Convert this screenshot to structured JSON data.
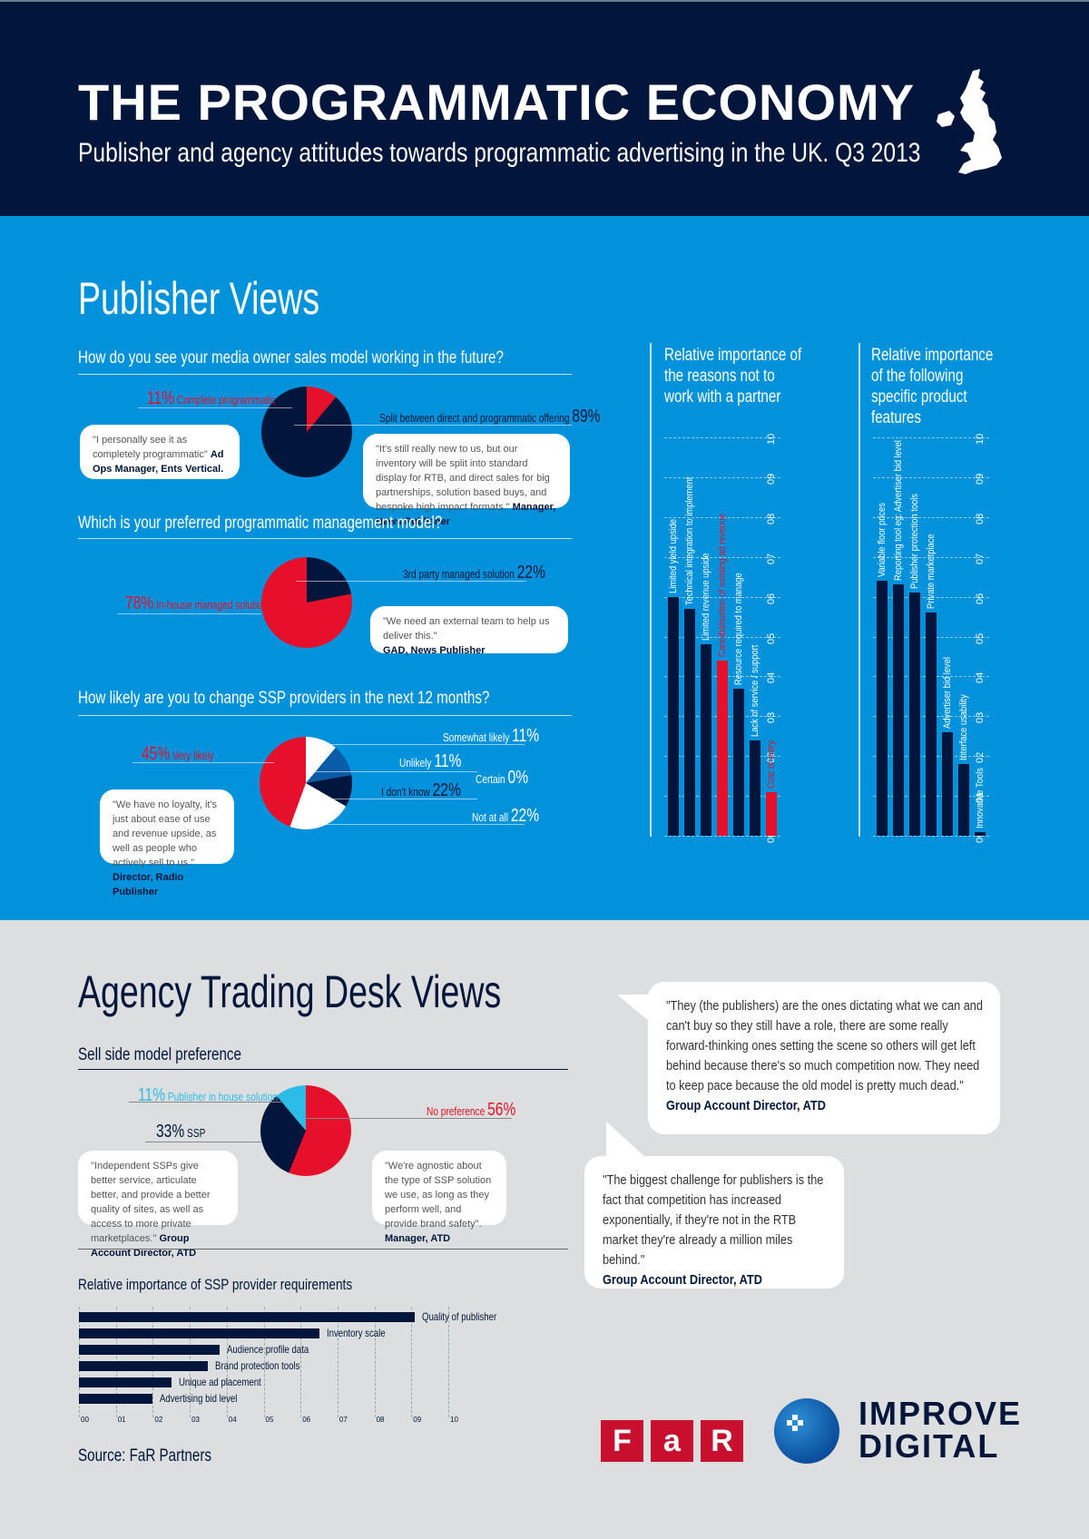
{
  "header": {
    "title": "THE PROGRAMMATIC ECONOMY",
    "subtitle": "Publisher and agency attitudes towards programmatic advertising in the UK. Q3 2013",
    "icon": "uk-map-icon"
  },
  "publisher": {
    "section_title": "Publisher Views",
    "q1": {
      "question": "How do you see your media owner sales model working in the future?",
      "slices": [
        {
          "pct": "11%",
          "label": "Complete programmatic"
        },
        {
          "pct": "89%",
          "label": "Split between direct and programmatic offering"
        }
      ],
      "quote_left": "\"I personally see it as completely programmatic\"",
      "quote_left_who": "Ad Ops Manager, Ents Vertical.",
      "quote_right": "\"It's still really new to us, but our inventory will be split into standard display for RTB, and direct sales for big partnerships, solution based buys, and bespoke high impact formats.\"",
      "quote_right_who": "Manager, News Publisher"
    },
    "q2": {
      "question": "Which is your preferred programmatic management model?",
      "slices": [
        {
          "pct": "22%",
          "label": "3rd party managed solution"
        },
        {
          "pct": "78%",
          "label": "In-house managed solution"
        }
      ],
      "quote": "\"We need an external team to help us deliver this.\"",
      "quote_who": "GAD, News Publisher"
    },
    "q3": {
      "question": "How likely are you to change SSP providers in the next 12 months?",
      "slices": [
        {
          "pct": "45%",
          "label": "Very likely"
        },
        {
          "pct": "11%",
          "label": "Somewhat likely"
        },
        {
          "pct": "11%",
          "label": "Unlikely"
        },
        {
          "pct": "0%",
          "label": "Certain"
        },
        {
          "pct": "22%",
          "label": "I don't know"
        },
        {
          "pct": "22%",
          "label": "Not at all"
        }
      ],
      "quote": "\"We have no loyalty, it's just about ease of use and revenue upside, as well as people who actively sell to us.\"",
      "quote_who": "Director, Radio Publisher"
    },
    "reasons_chart": {
      "title": "Relative importance of the reasons not to work with a partner"
    },
    "features_chart": {
      "title": "Relative importance of the following specific product features"
    },
    "ticks": [
      "00",
      "01",
      "02",
      "03",
      "04",
      "05",
      "06",
      "07",
      "08",
      "09",
      "10"
    ]
  },
  "agency": {
    "section_title": "Agency Trading Desk Views",
    "sell_side": {
      "title": "Sell side model preference",
      "slices": [
        {
          "pct": "11%",
          "label": "Publisher in house solution"
        },
        {
          "pct": "33%",
          "label": "SSP"
        },
        {
          "pct": "56%",
          "label": "No preference"
        }
      ],
      "quote_left": "\"Independent SSPs give better service, articulate better, and provide a better quality of sites, as well as access to more private marketplaces.\"",
      "quote_left_who": "Group Account Director, ATD",
      "quote_right": "\"We're agnostic about the type of SSP solution we use, as long as they perform well, and provide brand safety\".",
      "quote_right_who": "Manager, ATD"
    },
    "ssp_chart": {
      "title": "Relative importance of SSP provider requirements"
    },
    "quote1": "\"They (the publishers) are the ones dictating what we can and can't buy so they still have a role, there are some really forward-thinking ones setting the scene so others will get left behind because there's so much competition now. They need to keep pace because the old model is pretty much dead.\"",
    "quote1_who": "Group Account Director,  ATD",
    "quote2": "\"The biggest challenge for publishers is the fact that competition has increased exponentially, if they're not in the RTB market they're already a million miles behind.\"",
    "quote2_who": "Group Account Director, ATD",
    "source": "Source: FaR Partners"
  },
  "logos": {
    "far": [
      "F",
      "a",
      "R"
    ],
    "improve_digital_line1": "IMPROVE",
    "improve_digital_line2": "DIGITAL"
  },
  "colors": {
    "navy": "#01163a",
    "blue": "#0192db",
    "red": "#e6102a",
    "light_blue": "#2bbde8",
    "grey": "#dcdedf"
  },
  "chart_data": [
    {
      "type": "pie",
      "title": "How do you see your media owner sales model working in the future?",
      "categories": [
        "Complete programmatic",
        "Split between direct and programmatic offering"
      ],
      "values": [
        11,
        89
      ]
    },
    {
      "type": "pie",
      "title": "Which is your preferred programmatic management model?",
      "categories": [
        "3rd party managed solution",
        "In-house managed solution"
      ],
      "values": [
        22,
        78
      ]
    },
    {
      "type": "pie",
      "title": "How likely are you to change SSP providers in the next 12 months?",
      "categories": [
        "Very likely",
        "Somewhat likely",
        "Unlikely",
        "Certain",
        "I don't know",
        "Not at all"
      ],
      "values": [
        45,
        11,
        11,
        0,
        22,
        22
      ]
    },
    {
      "type": "bar",
      "title": "Relative importance of the reasons not to work with a partner",
      "categories": [
        "Limited yield upside",
        "Technical integration to implement",
        "Limited revenue upside",
        "Cannibalisation of existing ad revenue",
        "Resource required to manage",
        "Lack of service / support",
        "Cost of entry"
      ],
      "values": [
        6.0,
        5.7,
        4.8,
        4.4,
        3.7,
        2.4,
        1.1
      ],
      "highlighted": [
        "Cannibalisation of existing ad revenue",
        "Cost of entry"
      ],
      "ylim": [
        0,
        10
      ],
      "yticks": [
        "00",
        "01",
        "02",
        "03",
        "04",
        "05",
        "06",
        "07",
        "08",
        "09",
        "10"
      ],
      "grid": true
    },
    {
      "type": "bar",
      "title": "Relative importance of the following specific product features",
      "categories": [
        "Variable floor prices",
        "Reporting tool eg: Advertiser bid level",
        "Publisher protection tools",
        "Private marketplace",
        "Advertiser bid level",
        "Interface usability",
        "Innovative Tools"
      ],
      "values": [
        6.4,
        6.3,
        6.1,
        5.6,
        2.6,
        1.8,
        0.1
      ],
      "ylim": [
        0,
        10
      ],
      "yticks": [
        "00",
        "01",
        "02",
        "03",
        "04",
        "05",
        "06",
        "07",
        "08",
        "09",
        "10"
      ],
      "grid": true
    },
    {
      "type": "pie",
      "title": "Sell side model preference",
      "categories": [
        "Publisher in house solution",
        "SSP",
        "No preference"
      ],
      "values": [
        11,
        33,
        56
      ]
    },
    {
      "type": "bar",
      "orientation": "horizontal",
      "title": "Relative importance of SSP provider requirements",
      "categories": [
        "Quality of publisher",
        "Inventory scale",
        "Audience profile data",
        "Brand protection tools",
        "Unique ad placement",
        "Advertising bid level"
      ],
      "values": [
        9.1,
        6.5,
        3.8,
        3.5,
        2.5,
        2.0
      ],
      "xlim": [
        0,
        10
      ],
      "xticks": [
        "00",
        "01",
        "02",
        "03",
        "04",
        "05",
        "06",
        "07",
        "08",
        "09",
        "10"
      ],
      "grid": true
    }
  ]
}
